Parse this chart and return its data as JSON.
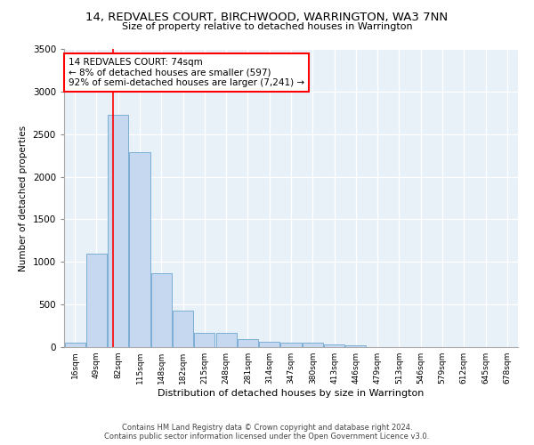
{
  "title": "14, REDVALES COURT, BIRCHWOOD, WARRINGTON, WA3 7NN",
  "subtitle": "Size of property relative to detached houses in Warrington",
  "xlabel": "Distribution of detached houses by size in Warrington",
  "ylabel": "Number of detached properties",
  "categories": [
    "16sqm",
    "49sqm",
    "82sqm",
    "115sqm",
    "148sqm",
    "182sqm",
    "215sqm",
    "248sqm",
    "281sqm",
    "314sqm",
    "347sqm",
    "380sqm",
    "413sqm",
    "446sqm",
    "479sqm",
    "513sqm",
    "546sqm",
    "579sqm",
    "612sqm",
    "645sqm",
    "678sqm"
  ],
  "values": [
    55,
    1100,
    2730,
    2290,
    870,
    430,
    170,
    170,
    95,
    65,
    55,
    50,
    35,
    20,
    5,
    0,
    0,
    0,
    0,
    0,
    0
  ],
  "bar_color": "#c5d8f0",
  "bar_edge_color": "#7bafd4",
  "annotation_text": "14 REDVALES COURT: 74sqm\n← 8% of detached houses are smaller (597)\n92% of semi-detached houses are larger (7,241) →",
  "annotation_box_color": "white",
  "annotation_box_edge_color": "red",
  "vline_color": "red",
  "ylim": [
    0,
    3500
  ],
  "yticks": [
    0,
    500,
    1000,
    1500,
    2000,
    2500,
    3000,
    3500
  ],
  "background_color": "#e8f0f8",
  "grid_color": "white",
  "footer1": "Contains HM Land Registry data © Crown copyright and database right 2024.",
  "footer2": "Contains public sector information licensed under the Open Government Licence v3.0."
}
